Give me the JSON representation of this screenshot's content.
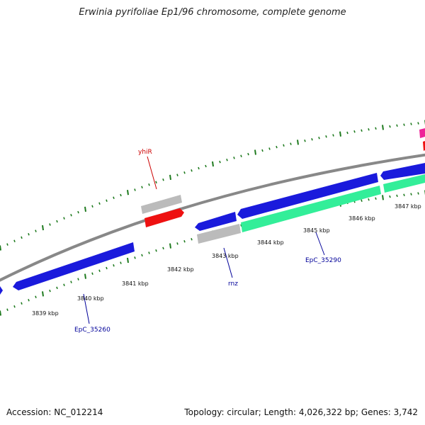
{
  "title": "Erwinia pyrifoliae Ep1/96 chromosome, complete genome",
  "footer": {
    "accession": "Accession: NC_012214",
    "summary": "Topology: circular; Length: 4,026,322 bp; Genes: 3,742"
  },
  "colors": {
    "backbone": "#888888",
    "ticks": "#1e7a1e",
    "cds_blue": "#1a1adc",
    "cds_teal": "#33ee99",
    "gray_feature": "#bbbbbb",
    "red_feature": "#ee1111",
    "pink_feature": "#ee2299",
    "label_red": "#cc0000",
    "label_blue": "#000099"
  },
  "tick_labels": [
    {
      "id": "3839",
      "text": "3839 kbp"
    },
    {
      "id": "3840",
      "text": "3840 kbp"
    },
    {
      "id": "3841",
      "text": "3841 kbp"
    },
    {
      "id": "3842",
      "text": "3842 kbp"
    },
    {
      "id": "3843",
      "text": "3843 kbp"
    },
    {
      "id": "3844",
      "text": "3844 kbp"
    },
    {
      "id": "3845",
      "text": "3845 kbp"
    },
    {
      "id": "3846",
      "text": "3846 kbp"
    },
    {
      "id": "3847",
      "text": "3847 kbp"
    }
  ],
  "gene_labels": {
    "yhiR": "yhiR",
    "rnz": "rnz",
    "EpC_35260": "EpC_35260",
    "EpC_35290": "EpC_35290"
  }
}
